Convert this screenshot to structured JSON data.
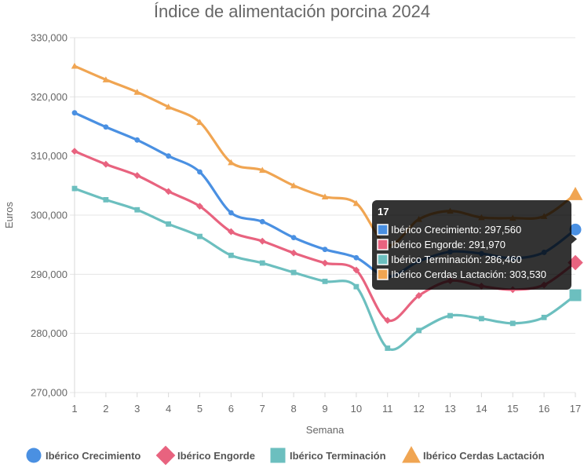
{
  "chart_data": {
    "type": "line",
    "title": "Índice de alimentación porcina 2024",
    "xlabel": "Semana",
    "ylabel": "Euros",
    "x": [
      1,
      2,
      3,
      4,
      5,
      6,
      7,
      8,
      9,
      10,
      11,
      12,
      13,
      14,
      15,
      16,
      17
    ],
    "ylim": [
      270000,
      330000
    ],
    "yticks": [
      270000,
      280000,
      290000,
      300000,
      310000,
      320000,
      330000
    ],
    "ytick_labels": [
      "270,000",
      "280,000",
      "290,000",
      "300,000",
      "310,000",
      "320,000",
      "330,000"
    ],
    "grid": true,
    "legend_position": "bottom",
    "series": [
      {
        "name": "Ibérico Crecimiento",
        "color": "#4a90e2",
        "marker": "circle",
        "values": [
          317300,
          314900,
          312700,
          310000,
          307300,
          300400,
          298900,
          296200,
          294200,
          292800,
          289600,
          292200,
          293800,
          293500,
          292700,
          293700,
          297560
        ]
      },
      {
        "name": "Ibérico Engorde",
        "color": "#e8637f",
        "marker": "diamond",
        "values": [
          310800,
          308600,
          306700,
          304000,
          301500,
          297200,
          295600,
          293600,
          291900,
          290700,
          282200,
          286400,
          288900,
          288000,
          287400,
          288200,
          291970
        ]
      },
      {
        "name": "Ibérico Terminación",
        "color": "#6cbfbf",
        "marker": "square",
        "values": [
          304500,
          302600,
          300900,
          298500,
          296400,
          293200,
          291900,
          290300,
          288800,
          287900,
          277500,
          280500,
          283000,
          282500,
          281700,
          282700,
          286460
        ]
      },
      {
        "name": "Ibérico Cerdas Lactación",
        "color": "#f0a552",
        "marker": "triangle",
        "values": [
          325200,
          322900,
          320800,
          318300,
          315700,
          308900,
          307600,
          305000,
          303100,
          302000,
          294900,
          299300,
          300700,
          299600,
          299500,
          299800,
          303530
        ]
      }
    ],
    "tooltip": {
      "title": "17",
      "x_index": 16,
      "lines": [
        "Ibérico Crecimiento: 297,560",
        "Ibérico Engorde: 291,970",
        "Ibérico Terminación: 286,460",
        "Ibérico Cerdas Lactación: 303,530"
      ]
    }
  }
}
